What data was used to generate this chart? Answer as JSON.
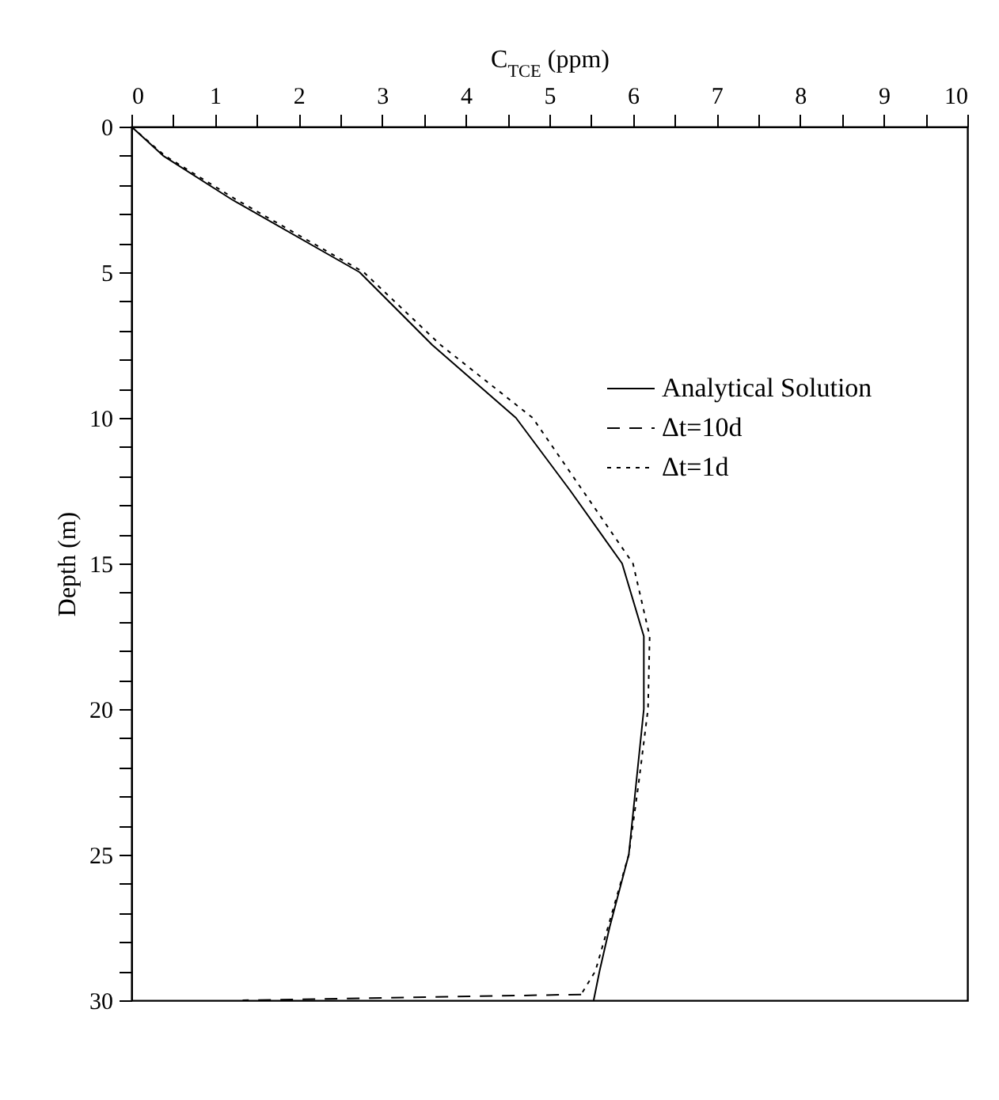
{
  "chart_data": {
    "type": "line",
    "xlabel": "C$_{TCE}$ (ppm)",
    "ylabel": "Depth (m)",
    "xlim": [
      0,
      10
    ],
    "ylim": [
      30,
      0
    ],
    "xticks": [
      0,
      {
        "value": 0.5,
        "label": null
      },
      1,
      {
        "value": 1.5,
        "label": null
      },
      2,
      {
        "value": 2.5,
        "label": null
      },
      3,
      {
        "value": 3.5,
        "label": null
      },
      4,
      {
        "value": 4.5,
        "label": null
      },
      5,
      {
        "value": 5.5,
        "label": null
      },
      6,
      {
        "value": 6.5,
        "label": null
      },
      7,
      {
        "value": 7.5,
        "label": null
      },
      8,
      {
        "value": 8.5,
        "label": null
      },
      9,
      {
        "value": 9.5,
        "label": null
      },
      10
    ],
    "yticks": [
      0,
      {
        "value": 1,
        "label": null
      },
      {
        "value": 2,
        "label": null
      },
      {
        "value": 3,
        "label": null
      },
      {
        "value": 4,
        "label": null
      },
      5,
      {
        "value": 6,
        "label": null
      },
      {
        "value": 7,
        "label": null
      },
      {
        "value": 8,
        "label": null
      },
      {
        "value": 9,
        "label": null
      },
      10,
      {
        "value": 11,
        "label": null
      },
      {
        "value": 12,
        "label": null
      },
      {
        "value": 13,
        "label": null
      },
      {
        "value": 14,
        "label": null
      },
      15,
      {
        "value": 16,
        "label": null
      },
      {
        "value": 17,
        "label": null
      },
      {
        "value": 18,
        "label": null
      },
      {
        "value": 19,
        "label": null
      },
      20,
      {
        "value": 21,
        "label": null
      },
      {
        "value": 22,
        "label": null
      },
      {
        "value": 23,
        "label": null
      },
      {
        "value": 24,
        "label": null
      },
      25,
      {
        "value": 26,
        "label": null
      },
      {
        "value": 27,
        "label": null
      },
      {
        "value": 28,
        "label": null
      },
      {
        "value": 29,
        "label": null
      },
      30
    ],
    "grid": false,
    "legend": "top right",
    "series": [
      {
        "name": "Analytical Solution",
        "color": "#000000",
        "line_style": "solid",
        "x": [
          0,
          0.38,
          1.2,
          2.73,
          3.6,
          4.6,
          5.25,
          5.87,
          6.13,
          6.13,
          6.04,
          5.95,
          5.72,
          5.6,
          5.53
        ],
        "values": [
          0,
          1,
          2.5,
          5,
          7.5,
          10,
          12.5,
          15,
          17.5,
          20,
          22.5,
          25,
          27.5,
          29,
          30
        ]
      },
      {
        "name": "Δt=10d",
        "color": "#000000",
        "line_style": "dashed",
        "x": [
          5.38,
          1.33
        ],
        "values": [
          29.8,
          30
        ]
      },
      {
        "name": "Δt=1d",
        "color": "#000000",
        "line_style": "dotted",
        "x": [
          0,
          0.4,
          1.25,
          2.78,
          3.7,
          4.8,
          5.4,
          6.0,
          6.2,
          6.18,
          6.07,
          5.95,
          5.7,
          5.55,
          5.38
        ],
        "values": [
          0,
          1,
          2.5,
          5,
          7.5,
          10,
          12.5,
          15,
          17.5,
          20,
          22.5,
          25,
          27.5,
          29,
          29.8
        ]
      }
    ]
  }
}
